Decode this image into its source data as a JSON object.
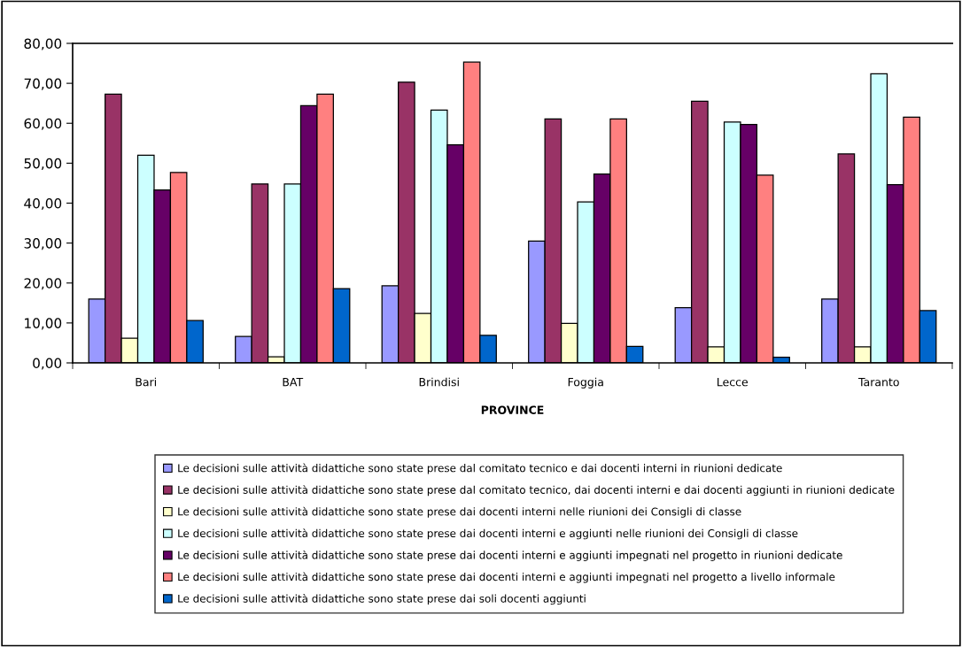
{
  "chart_data": {
    "type": "bar",
    "xlabel": "PROVINCE",
    "categories": [
      "Bari",
      "BAT",
      "Brindisi",
      "Foggia",
      "Lecce",
      "Taranto"
    ],
    "ylim": [
      0,
      80
    ],
    "yticks": [
      {
        "value": 0,
        "label": "0,00"
      },
      {
        "value": 10,
        "label": "10,00"
      },
      {
        "value": 20,
        "label": "20,00"
      },
      {
        "value": 30,
        "label": "30,00"
      },
      {
        "value": 40,
        "label": "40,00"
      },
      {
        "value": 50,
        "label": "50,00"
      },
      {
        "value": 60,
        "label": "60,00"
      },
      {
        "value": 70,
        "label": "70,00"
      },
      {
        "value": 80,
        "label": "80,00"
      }
    ],
    "grid": false,
    "legend": "bottom",
    "series": [
      {
        "name": "Le decisioni sulle attività didattiche sono state prese dal comitato tecnico e dai docenti interni in riunioni dedicate",
        "color": "#9999ff",
        "values": [
          16.0,
          6.6,
          19.3,
          30.5,
          13.8,
          16.0
        ]
      },
      {
        "name": "Le decisioni sulle attività didattiche sono state prese dal comitato tecnico, dai docenti interni e dai docenti aggiunti in riunioni dedicate",
        "color": "#993366",
        "values": [
          67.3,
          44.8,
          70.3,
          61.1,
          65.5,
          52.3
        ]
      },
      {
        "name": "Le decisioni sulle attività didattiche sono state prese dai docenti interni nelle riunioni dei Consigli di classe",
        "color": "#ffffcc",
        "values": [
          6.2,
          1.5,
          12.4,
          9.9,
          4.0,
          4.0
        ]
      },
      {
        "name": "Le decisioni sulle attività didattiche sono state prese dai docenti interni e aggiunti nelle riunioni dei Consigli di classe",
        "color": "#ccffff",
        "values": [
          52.0,
          44.8,
          63.3,
          40.3,
          60.3,
          72.4
        ]
      },
      {
        "name": "Le decisioni sulle attività didattiche sono state prese dai docenti interni e aggiunti impegnati nel progetto in riunioni dedicate",
        "color": "#660066",
        "values": [
          43.3,
          64.4,
          54.6,
          47.3,
          59.7,
          44.6
        ]
      },
      {
        "name": "Le decisioni sulle attività didattiche sono state prese dai docenti interni e aggiunti impegnati nel progetto a livello informale",
        "color": "#ff8080",
        "values": [
          47.7,
          67.3,
          75.3,
          61.1,
          47.0,
          61.5
        ]
      },
      {
        "name": "Le decisioni sulle attività didattiche sono state prese dai soli docenti aggiunti",
        "color": "#0066cc",
        "values": [
          10.6,
          18.6,
          6.9,
          4.1,
          1.4,
          13.1
        ]
      }
    ]
  }
}
